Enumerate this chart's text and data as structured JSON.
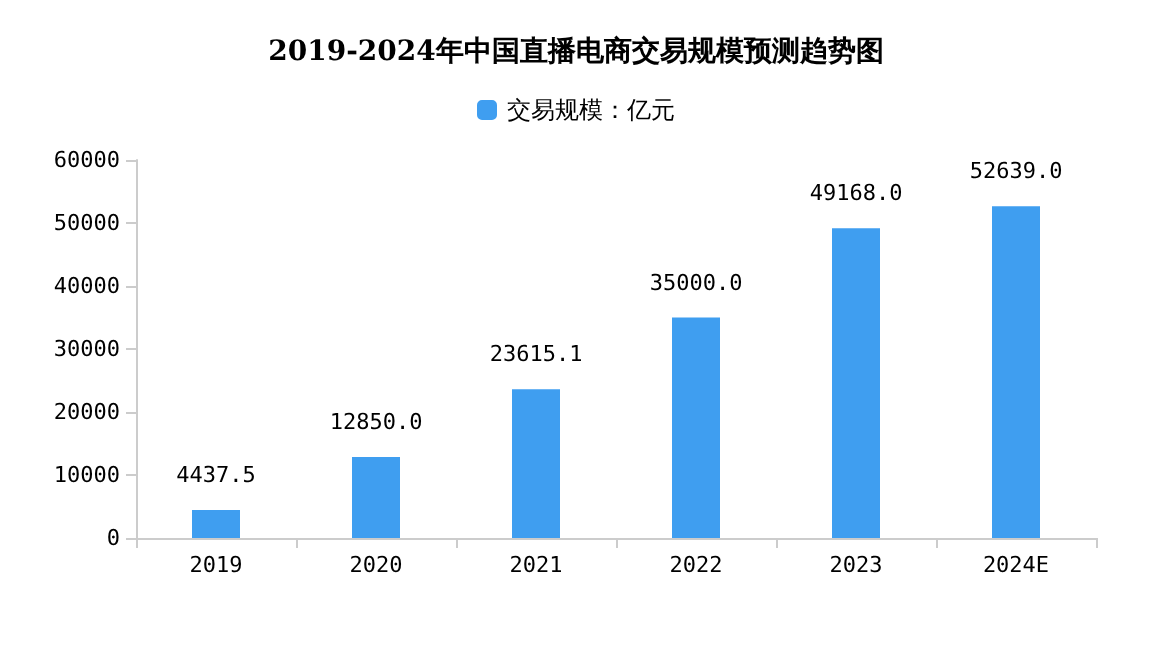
{
  "chart_data": {
    "type": "bar",
    "title": "2019-2024年中国直播电商交易规模预测趋势图",
    "categories": [
      "2019",
      "2020",
      "2021",
      "2022",
      "2023",
      "2024E"
    ],
    "series": [
      {
        "name": "交易规模：亿元",
        "color": "#3f9ef0",
        "values": [
          4437.5,
          12850.0,
          23615.1,
          35000.0,
          49168.0,
          52639.0
        ],
        "value_labels": [
          "4437.5",
          "12850.0",
          "23615.1",
          "35000.0",
          "49168.0",
          "52639.0"
        ]
      }
    ],
    "ylim": [
      0,
      60000
    ],
    "yticks": [
      0,
      10000,
      20000,
      30000,
      40000,
      50000,
      60000
    ],
    "grid": false,
    "legend": "top"
  }
}
